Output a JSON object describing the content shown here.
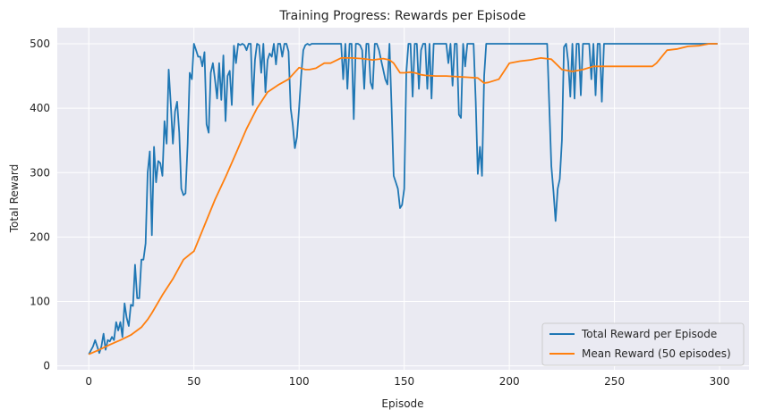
{
  "chart_data": {
    "type": "line",
    "title": "Training Progress: Rewards per Episode",
    "xlabel": "Episode",
    "ylabel": "Total Reward",
    "xlim": [
      -15,
      314
    ],
    "ylim": [
      -6,
      525
    ],
    "xticks": [
      0,
      50,
      100,
      150,
      200,
      250,
      300
    ],
    "yticks": [
      0,
      100,
      200,
      300,
      400,
      500
    ],
    "grid": true,
    "legend_position": "lower-right",
    "colors": {
      "background": "#eaeaf2",
      "grid": "#ffffff",
      "series1": "#1f77b4",
      "series2": "#ff7f0e"
    },
    "series": [
      {
        "name": "Total Reward per Episode",
        "points": [
          [
            0,
            18
          ],
          [
            2,
            30
          ],
          [
            3,
            40
          ],
          [
            5,
            20
          ],
          [
            6,
            30
          ],
          [
            7,
            50
          ],
          [
            8,
            25
          ],
          [
            9,
            40
          ],
          [
            10,
            38
          ],
          [
            11,
            45
          ],
          [
            12,
            40
          ],
          [
            13,
            68
          ],
          [
            14,
            55
          ],
          [
            15,
            68
          ],
          [
            16,
            45
          ],
          [
            17,
            97
          ],
          [
            18,
            75
          ],
          [
            19,
            62
          ],
          [
            20,
            95
          ],
          [
            21,
            93
          ],
          [
            22,
            157
          ],
          [
            23,
            105
          ],
          [
            24,
            105
          ],
          [
            25,
            165
          ],
          [
            26,
            165
          ],
          [
            27,
            190
          ],
          [
            28,
            300
          ],
          [
            29,
            333
          ],
          [
            30,
            203
          ],
          [
            31,
            340
          ],
          [
            32,
            285
          ],
          [
            33,
            318
          ],
          [
            34,
            315
          ],
          [
            35,
            295
          ],
          [
            36,
            380
          ],
          [
            37,
            345
          ],
          [
            38,
            460
          ],
          [
            39,
            405
          ],
          [
            40,
            345
          ],
          [
            41,
            395
          ],
          [
            42,
            410
          ],
          [
            43,
            362
          ],
          [
            44,
            275
          ],
          [
            45,
            265
          ],
          [
            46,
            268
          ],
          [
            47,
            345
          ],
          [
            48,
            455
          ],
          [
            49,
            445
          ],
          [
            50,
            500
          ],
          [
            51,
            490
          ],
          [
            52,
            480
          ],
          [
            53,
            480
          ],
          [
            54,
            465
          ],
          [
            55,
            487
          ],
          [
            56,
            375
          ],
          [
            57,
            362
          ],
          [
            58,
            455
          ],
          [
            59,
            470
          ],
          [
            60,
            445
          ],
          [
            61,
            415
          ],
          [
            62,
            470
          ],
          [
            63,
            413
          ],
          [
            64,
            482
          ],
          [
            65,
            380
          ],
          [
            66,
            450
          ],
          [
            67,
            458
          ],
          [
            68,
            405
          ],
          [
            69,
            497
          ],
          [
            70,
            470
          ],
          [
            71,
            500
          ],
          [
            72,
            498
          ],
          [
            73,
            500
          ],
          [
            74,
            498
          ],
          [
            75,
            490
          ],
          [
            76,
            500
          ],
          [
            77,
            500
          ],
          [
            78,
            405
          ],
          [
            79,
            475
          ],
          [
            80,
            500
          ],
          [
            81,
            498
          ],
          [
            82,
            455
          ],
          [
            83,
            500
          ],
          [
            84,
            425
          ],
          [
            85,
            475
          ],
          [
            86,
            485
          ],
          [
            87,
            480
          ],
          [
            88,
            500
          ],
          [
            89,
            468
          ],
          [
            90,
            500
          ],
          [
            91,
            500
          ],
          [
            92,
            480
          ],
          [
            93,
            500
          ],
          [
            94,
            500
          ],
          [
            95,
            488
          ],
          [
            96,
            400
          ],
          [
            97,
            375
          ],
          [
            98,
            338
          ],
          [
            99,
            355
          ],
          [
            100,
            400
          ],
          [
            101,
            450
          ],
          [
            102,
            490
          ],
          [
            103,
            498
          ],
          [
            104,
            500
          ],
          [
            105,
            498
          ],
          [
            106,
            500
          ],
          [
            107,
            500
          ],
          [
            108,
            500
          ],
          [
            110,
            500
          ],
          [
            112,
            500
          ],
          [
            114,
            500
          ],
          [
            116,
            500
          ],
          [
            118,
            500
          ],
          [
            120,
            500
          ],
          [
            121,
            445
          ],
          [
            122,
            500
          ],
          [
            123,
            430
          ],
          [
            124,
            500
          ],
          [
            125,
            500
          ],
          [
            126,
            383
          ],
          [
            127,
            500
          ],
          [
            128,
            500
          ],
          [
            129,
            498
          ],
          [
            130,
            490
          ],
          [
            131,
            430
          ],
          [
            132,
            500
          ],
          [
            133,
            500
          ],
          [
            134,
            440
          ],
          [
            135,
            430
          ],
          [
            136,
            500
          ],
          [
            137,
            500
          ],
          [
            138,
            490
          ],
          [
            139,
            475
          ],
          [
            140,
            460
          ],
          [
            141,
            445
          ],
          [
            142,
            437
          ],
          [
            143,
            500
          ],
          [
            144,
            400
          ],
          [
            145,
            295
          ],
          [
            146,
            285
          ],
          [
            147,
            275
          ],
          [
            148,
            245
          ],
          [
            149,
            250
          ],
          [
            150,
            275
          ],
          [
            151,
            455
          ],
          [
            152,
            500
          ],
          [
            153,
            500
          ],
          [
            154,
            418
          ],
          [
            155,
            500
          ],
          [
            156,
            500
          ],
          [
            157,
            430
          ],
          [
            158,
            490
          ],
          [
            159,
            500
          ],
          [
            160,
            500
          ],
          [
            161,
            430
          ],
          [
            162,
            500
          ],
          [
            163,
            415
          ],
          [
            164,
            500
          ],
          [
            165,
            500
          ],
          [
            166,
            500
          ],
          [
            167,
            500
          ],
          [
            168,
            500
          ],
          [
            169,
            500
          ],
          [
            170,
            500
          ],
          [
            171,
            470
          ],
          [
            172,
            500
          ],
          [
            173,
            435
          ],
          [
            174,
            500
          ],
          [
            175,
            500
          ],
          [
            176,
            390
          ],
          [
            177,
            385
          ],
          [
            178,
            500
          ],
          [
            179,
            465
          ],
          [
            180,
            500
          ],
          [
            181,
            500
          ],
          [
            182,
            500
          ],
          [
            183,
            500
          ],
          [
            184,
            410
          ],
          [
            185,
            298
          ],
          [
            186,
            340
          ],
          [
            187,
            295
          ],
          [
            188,
            450
          ],
          [
            189,
            500
          ],
          [
            190,
            500
          ],
          [
            192,
            500
          ],
          [
            194,
            500
          ],
          [
            196,
            500
          ],
          [
            198,
            500
          ],
          [
            200,
            500
          ],
          [
            202,
            500
          ],
          [
            204,
            500
          ],
          [
            206,
            500
          ],
          [
            208,
            500
          ],
          [
            210,
            500
          ],
          [
            212,
            500
          ],
          [
            214,
            500
          ],
          [
            216,
            500
          ],
          [
            218,
            500
          ],
          [
            220,
            310
          ],
          [
            221,
            270
          ],
          [
            222,
            225
          ],
          [
            223,
            275
          ],
          [
            224,
            290
          ],
          [
            225,
            350
          ],
          [
            226,
            495
          ],
          [
            227,
            500
          ],
          [
            228,
            472
          ],
          [
            229,
            418
          ],
          [
            230,
            500
          ],
          [
            231,
            415
          ],
          [
            232,
            500
          ],
          [
            233,
            500
          ],
          [
            234,
            420
          ],
          [
            235,
            500
          ],
          [
            236,
            500
          ],
          [
            237,
            500
          ],
          [
            238,
            500
          ],
          [
            239,
            445
          ],
          [
            240,
            500
          ],
          [
            241,
            420
          ],
          [
            242,
            500
          ],
          [
            243,
            500
          ],
          [
            244,
            410
          ],
          [
            245,
            500
          ],
          [
            246,
            500
          ],
          [
            248,
            500
          ],
          [
            250,
            500
          ],
          [
            255,
            500
          ],
          [
            260,
            500
          ],
          [
            265,
            500
          ],
          [
            270,
            500
          ],
          [
            275,
            500
          ],
          [
            280,
            500
          ],
          [
            285,
            500
          ],
          [
            290,
            500
          ],
          [
            295,
            500
          ],
          [
            299,
            500
          ]
        ]
      },
      {
        "name": "Mean Reward (50 episodes)",
        "points": [
          [
            0,
            18
          ],
          [
            5,
            25
          ],
          [
            10,
            33
          ],
          [
            15,
            40
          ],
          [
            20,
            48
          ],
          [
            25,
            60
          ],
          [
            28,
            72
          ],
          [
            30,
            82
          ],
          [
            35,
            110
          ],
          [
            40,
            135
          ],
          [
            45,
            165
          ],
          [
            48,
            173
          ],
          [
            50,
            178
          ],
          [
            55,
            218
          ],
          [
            60,
            258
          ],
          [
            65,
            293
          ],
          [
            70,
            330
          ],
          [
            75,
            368
          ],
          [
            80,
            400
          ],
          [
            85,
            425
          ],
          [
            90,
            436
          ],
          [
            95,
            445
          ],
          [
            100,
            463
          ],
          [
            103,
            460
          ],
          [
            105,
            460
          ],
          [
            108,
            462
          ],
          [
            112,
            470
          ],
          [
            115,
            470
          ],
          [
            120,
            478
          ],
          [
            125,
            478
          ],
          [
            130,
            477
          ],
          [
            135,
            475
          ],
          [
            140,
            477
          ],
          [
            143,
            475
          ],
          [
            145,
            470
          ],
          [
            148,
            455
          ],
          [
            150,
            455
          ],
          [
            153,
            456
          ],
          [
            155,
            455
          ],
          [
            158,
            452
          ],
          [
            160,
            451
          ],
          [
            165,
            450
          ],
          [
            170,
            450
          ],
          [
            175,
            449
          ],
          [
            180,
            448
          ],
          [
            185,
            447
          ],
          [
            188,
            439
          ],
          [
            190,
            440
          ],
          [
            195,
            445
          ],
          [
            200,
            470
          ],
          [
            205,
            473
          ],
          [
            210,
            475
          ],
          [
            215,
            478
          ],
          [
            220,
            476
          ],
          [
            225,
            460
          ],
          [
            230,
            457
          ],
          [
            235,
            460
          ],
          [
            240,
            465
          ],
          [
            245,
            465
          ],
          [
            250,
            465
          ],
          [
            255,
            465
          ],
          [
            260,
            465
          ],
          [
            268,
            465
          ],
          [
            270,
            470
          ],
          [
            275,
            490
          ],
          [
            280,
            492
          ],
          [
            285,
            496
          ],
          [
            290,
            497
          ],
          [
            295,
            500
          ],
          [
            299,
            500
          ]
        ]
      }
    ]
  }
}
